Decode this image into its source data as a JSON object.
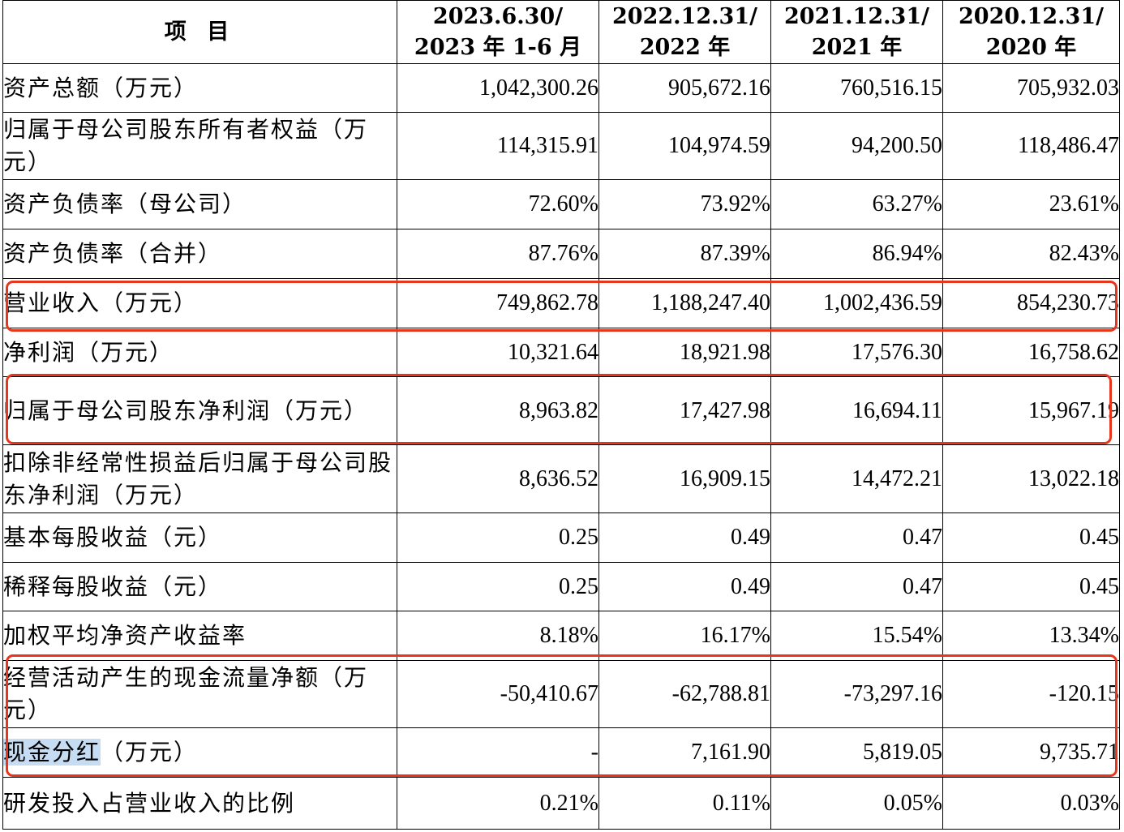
{
  "header": {
    "item": "项  目",
    "periods": [
      {
        "line1": "2023.6.30/",
        "line2": "2023 年 1-6 月"
      },
      {
        "line1": "2022.12.31/",
        "line2": "2022 年"
      },
      {
        "line1": "2021.12.31/",
        "line2": "2021 年"
      },
      {
        "line1": "2020.12.31/",
        "line2": "2020 年"
      }
    ]
  },
  "rows": [
    {
      "label": "资产总额（万元）",
      "values": [
        "1,042,300.26",
        "905,672.16",
        "760,516.15",
        "705,932.03"
      ]
    },
    {
      "label": "归属于母公司股东所有者权益（万元）",
      "values": [
        "114,315.91",
        "104,974.59",
        "94,200.50",
        "118,486.47"
      ]
    },
    {
      "label": "资产负债率（母公司）",
      "values": [
        "72.60%",
        "73.92%",
        "63.27%",
        "23.61%"
      ]
    },
    {
      "label": "资产负债率（合并）",
      "values": [
        "87.76%",
        "87.39%",
        "86.94%",
        "82.43%"
      ]
    },
    {
      "label": "营业收入（万元）",
      "values": [
        "749,862.78",
        "1,188,247.40",
        "1,002,436.59",
        "854,230.73"
      ]
    },
    {
      "label": "净利润（万元）",
      "values": [
        "10,321.64",
        "18,921.98",
        "17,576.30",
        "16,758.62"
      ]
    },
    {
      "label": "归属于母公司股东净利润（万元）",
      "values": [
        "8,963.82",
        "17,427.98",
        "16,694.11",
        "15,967.19"
      ]
    },
    {
      "label": "扣除非经常性损益后归属于母公司股东净利润（万元）",
      "values": [
        "8,636.52",
        "16,909.15",
        "14,472.21",
        "13,022.18"
      ]
    },
    {
      "label": "基本每股收益（元）",
      "values": [
        "0.25",
        "0.49",
        "0.47",
        "0.45"
      ]
    },
    {
      "label": "稀释每股收益（元）",
      "values": [
        "0.25",
        "0.49",
        "0.47",
        "0.45"
      ]
    },
    {
      "label": "加权平均净资产收益率",
      "values": [
        "8.18%",
        "16.17%",
        "15.54%",
        "13.34%"
      ]
    },
    {
      "label": "经营活动产生的现金流量净额（万元）",
      "values": [
        "-50,410.67",
        "-62,788.81",
        "-73,297.16",
        "-120.15"
      ]
    },
    {
      "label_highlight": "现金分红",
      "label_rest": "（万元）",
      "values": [
        "-",
        "7,161.90",
        "5,819.05",
        "9,735.71"
      ]
    },
    {
      "label": "研发投入占营业收入的比例",
      "values": [
        "0.21%",
        "0.11%",
        "0.05%",
        "0.03%"
      ]
    }
  ],
  "colors": {
    "highlight_box": "#e8361d",
    "selection": "#c6dcf3"
  }
}
